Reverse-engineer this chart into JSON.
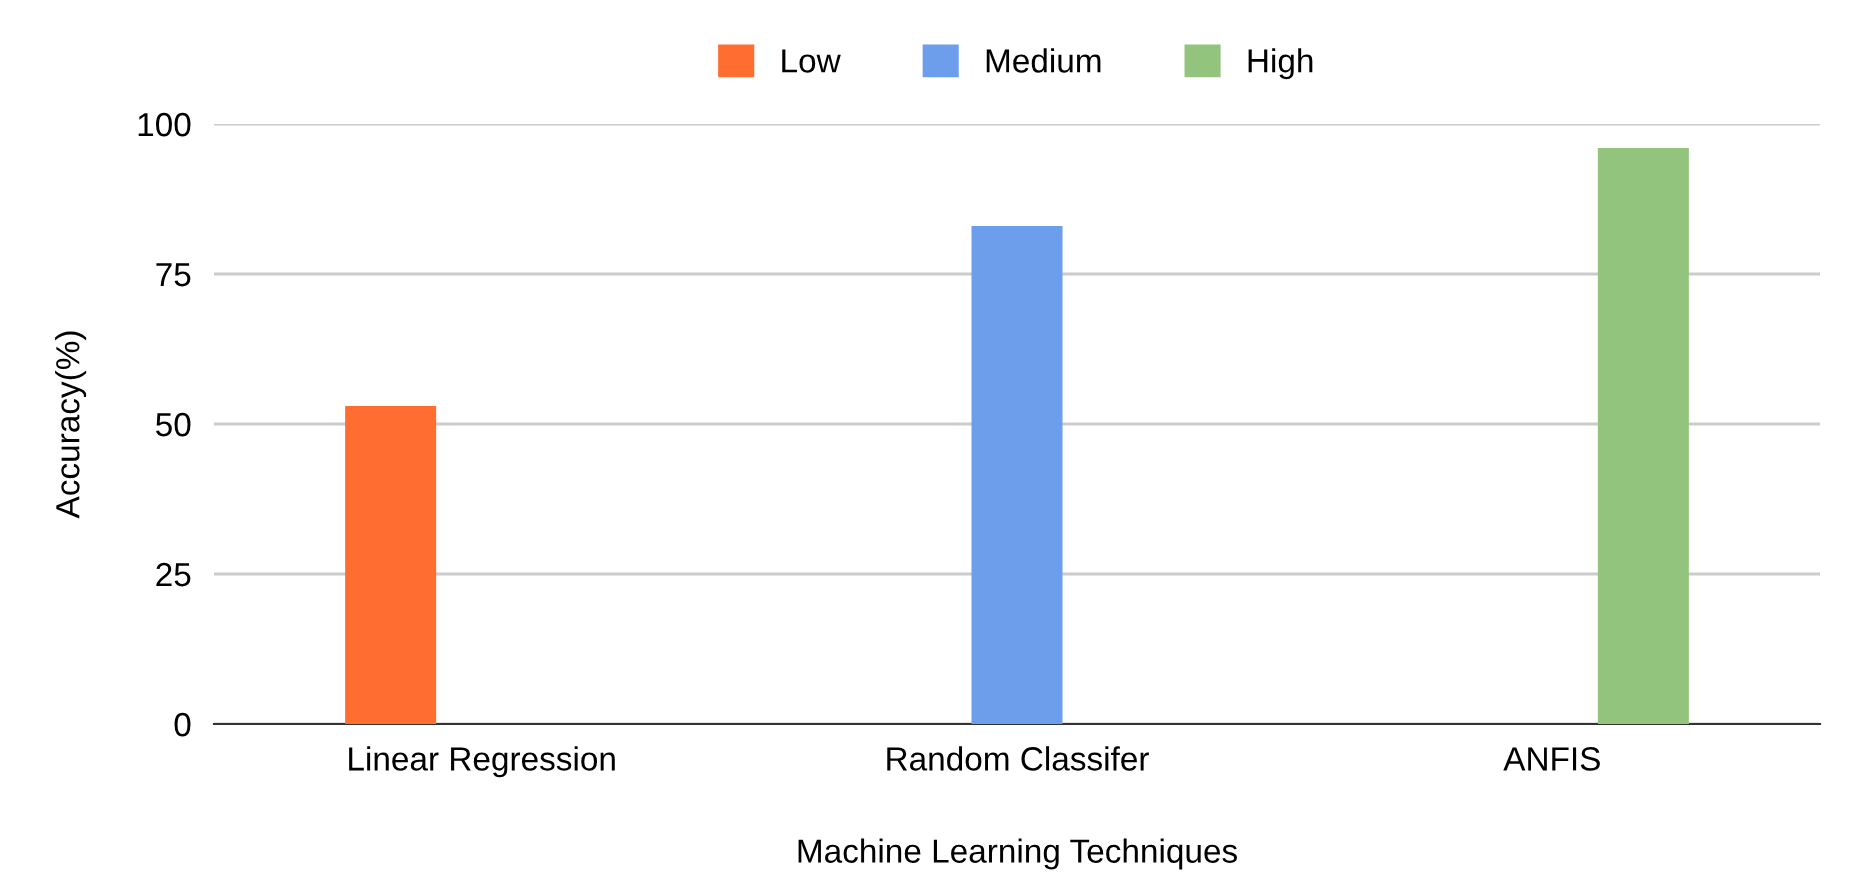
{
  "chart_data": {
    "type": "bar",
    "xlabel": "Machine Learning Techniques",
    "ylabel": "Accuracy(%)",
    "categories": [
      "Linear Regression",
      "Random Classifer",
      "ANFIS"
    ],
    "series": [
      {
        "name": "Low",
        "color": "#ff6d31",
        "values": [
          53,
          null,
          null
        ]
      },
      {
        "name": "Medium",
        "color": "#6d9eeb",
        "values": [
          null,
          83,
          null
        ]
      },
      {
        "name": "High",
        "color": "#93c47d",
        "values": [
          null,
          null,
          96
        ]
      }
    ],
    "ylim": [
      0,
      100
    ],
    "yticks": [
      0,
      25,
      50,
      75,
      100
    ],
    "grid": "y",
    "legend": "top"
  }
}
